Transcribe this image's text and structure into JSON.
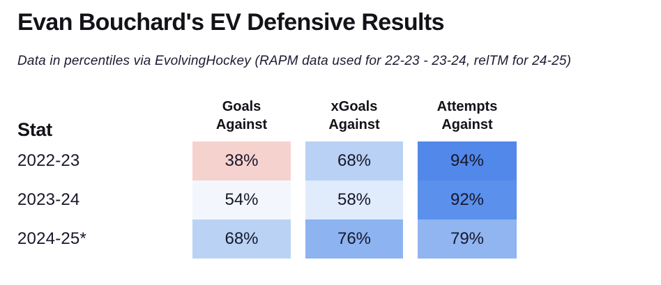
{
  "title": "Evan Bouchard's EV Defensive Results",
  "subtitle": "Data in percentiles via EvolvingHockey (RAPM data used for 22-23 - 23-24, relTM for 24-25)",
  "table": {
    "stat_header": "Stat",
    "columns": [
      {
        "line1": "Goals",
        "line2": "Against"
      },
      {
        "line1": "xGoals",
        "line2": "Against"
      },
      {
        "line1": "Attempts",
        "line2": "Against"
      }
    ],
    "rows": [
      {
        "label": "2022-23",
        "cells": [
          {
            "value": "38%",
            "bg": "#f6d2cf"
          },
          {
            "value": "68%",
            "bg": "#b9d1f4"
          },
          {
            "value": "94%",
            "bg": "#5288ea"
          }
        ]
      },
      {
        "label": "2023-24",
        "cells": [
          {
            "value": "54%",
            "bg": "#f3f7fd"
          },
          {
            "value": "58%",
            "bg": "#e0ebfb"
          },
          {
            "value": "92%",
            "bg": "#5b90ec"
          }
        ]
      },
      {
        "label": "2024-25*",
        "cells": [
          {
            "value": "68%",
            "bg": "#bad3f5"
          },
          {
            "value": "76%",
            "bg": "#8db3f0"
          },
          {
            "value": "79%",
            "bg": "#90b5f1"
          }
        ]
      }
    ]
  },
  "colors": {
    "low_pink": "#f6d2cf",
    "high_blue": "#5288ea",
    "text": "#17172a"
  },
  "chart_data": {
    "type": "heatmap",
    "title": "Evan Bouchard's EV Defensive Results",
    "subtitle": "Data in percentiles via EvolvingHockey (RAPM data used for 22-23 - 23-24, relTM for 24-25)",
    "rows": [
      "2022-23",
      "2023-24",
      "2024-25*"
    ],
    "columns": [
      "Goals Against",
      "xGoals Against",
      "Attempts Against"
    ],
    "values": [
      [
        38,
        68,
        94
      ],
      [
        54,
        58,
        92
      ],
      [
        68,
        76,
        79
      ]
    ],
    "unit": "%",
    "value_range": [
      0,
      100
    ],
    "color_scale": {
      "low": "#f6d2cf",
      "mid": "#ffffff",
      "high": "#4d86e8"
    },
    "legend": "none",
    "grid": "off"
  }
}
